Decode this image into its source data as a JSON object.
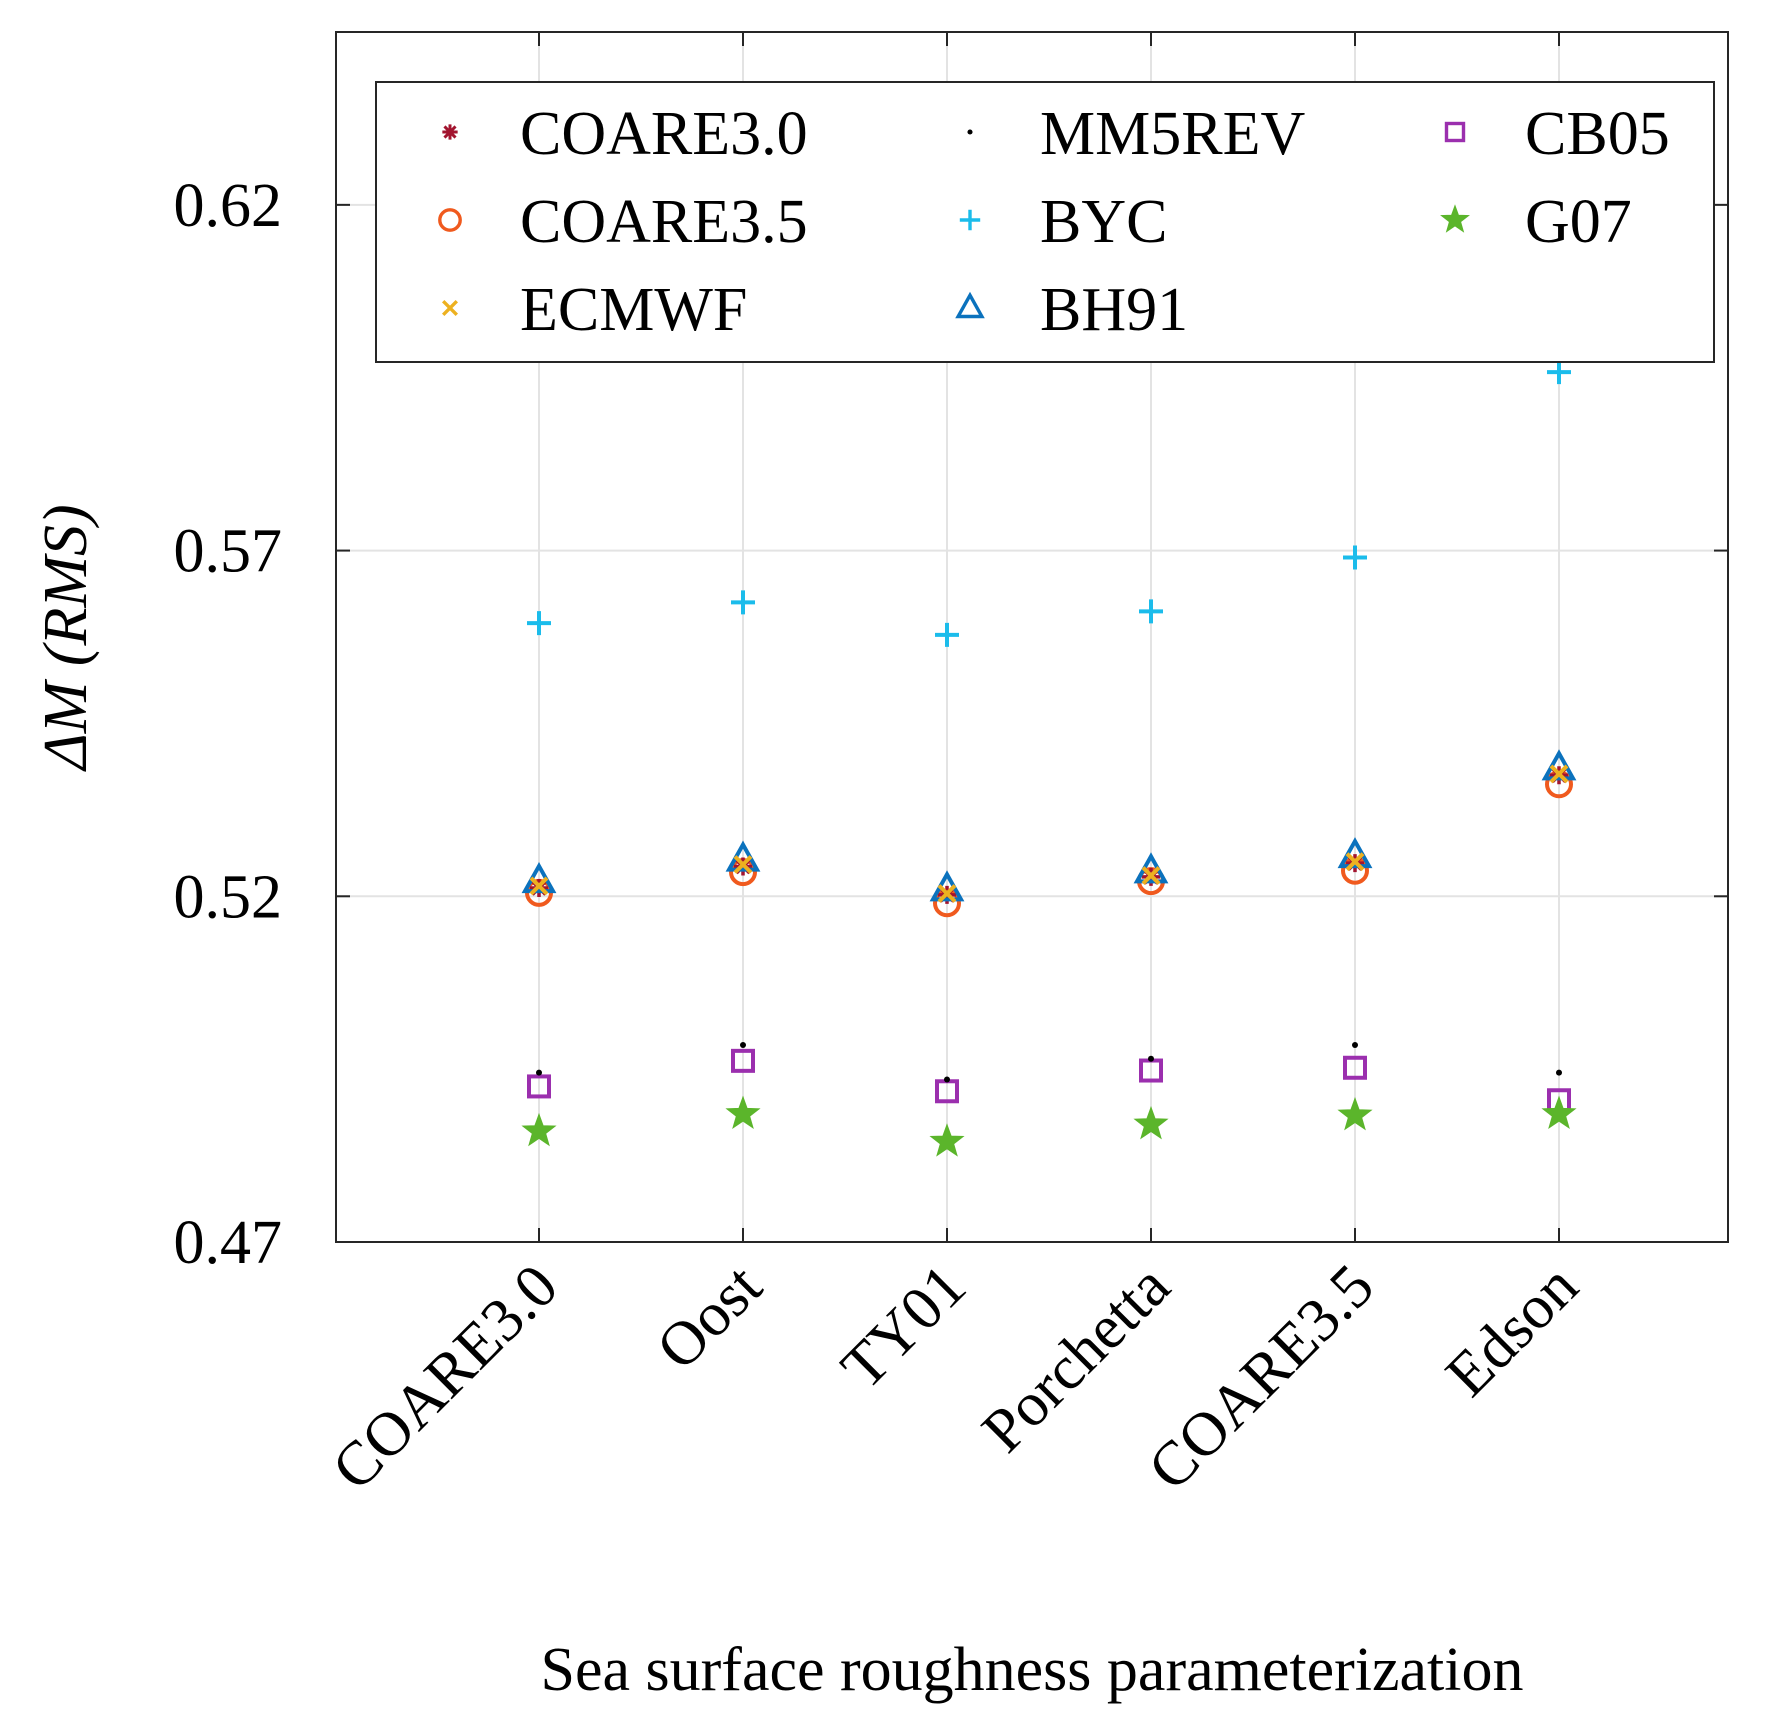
{
  "chart_data": {
    "type": "scatter",
    "title": "",
    "xlabel": "Sea surface roughness parameterization",
    "ylabel_prefix": "ΔM",
    "ylabel_suffix": "(RMS)",
    "ylim": [
      0.47,
      0.645
    ],
    "yticks": [
      0.47,
      0.52,
      0.57,
      0.62
    ],
    "ytick_labels": [
      "0.47",
      "0.52",
      "0.57",
      "0.62"
    ],
    "categories": [
      "COARE3.0",
      "Oost",
      "TY01",
      "Porchetta",
      "COARE3.5",
      "Edson"
    ],
    "grid": true,
    "legend_position": "top",
    "series": [
      {
        "name": "COARE3.0",
        "marker": "asterisk",
        "color": "#A2142F",
        "values": [
          0.5212,
          0.5243,
          0.5202,
          0.5228,
          0.5248,
          0.5375
        ]
      },
      {
        "name": "MM5REV",
        "marker": "dot",
        "color": "#000000",
        "values": [
          0.4945,
          0.4985,
          0.4935,
          0.4965,
          0.4985,
          0.4945
        ]
      },
      {
        "name": "CB05",
        "marker": "square",
        "color": "#9B2FAE",
        "values": [
          0.4925,
          0.4962,
          0.4918,
          0.4948,
          0.4952,
          0.4905
        ]
      },
      {
        "name": "COARE3.5",
        "marker": "circle",
        "color": "#F05A1E",
        "values": [
          0.5205,
          0.5235,
          0.519,
          0.5222,
          0.5237,
          0.5362
        ]
      },
      {
        "name": "BYC",
        "marker": "plus",
        "color": "#1BBCEB",
        "values": [
          0.5595,
          0.5625,
          0.5578,
          0.5612,
          0.569,
          0.5958
        ]
      },
      {
        "name": "G07",
        "marker": "star",
        "color": "#5BB52B",
        "values": [
          0.486,
          0.4885,
          0.4845,
          0.487,
          0.4883,
          0.4885
        ]
      },
      {
        "name": "ECMWF",
        "marker": "x",
        "color": "#EDB120",
        "values": [
          0.5215,
          0.5246,
          0.5204,
          0.523,
          0.525,
          0.5377
        ]
      },
      {
        "name": "BH91",
        "marker": "triangle",
        "color": "#0B72BD",
        "values": [
          0.5222,
          0.5253,
          0.521,
          0.5236,
          0.5258,
          0.5385
        ]
      }
    ],
    "legend_order": [
      [
        "COARE3.0",
        "MM5REV",
        "CB05"
      ],
      [
        "COARE3.5",
        "BYC",
        "G07"
      ],
      [
        "ECMWF",
        "BH91"
      ]
    ]
  }
}
